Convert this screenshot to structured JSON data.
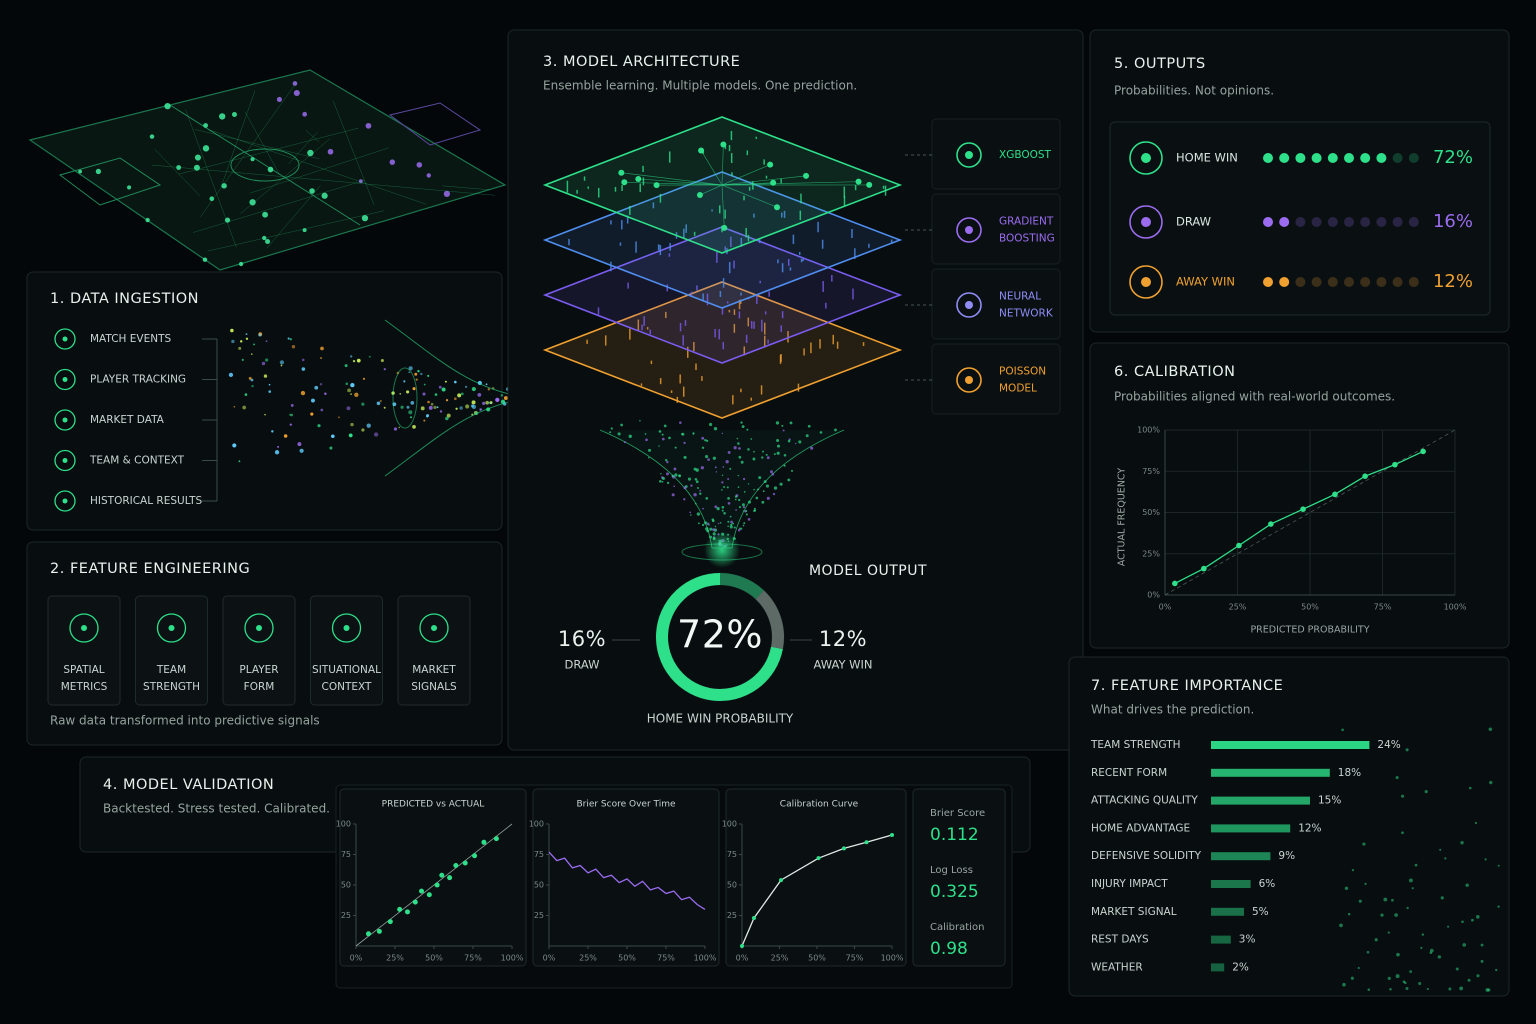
{
  "data_ingestion": {
    "title": "1. DATA INGESTION",
    "items": [
      "MATCH EVENTS",
      "PLAYER TRACKING",
      "MARKET DATA",
      "TEAM & CONTEXT",
      "HISTORICAL RESULTS"
    ]
  },
  "feature_engineering": {
    "title": "2. FEATURE ENGINEERING",
    "items": [
      {
        "lines": [
          "SPATIAL",
          "METRICS"
        ]
      },
      {
        "lines": [
          "TEAM",
          "STRENGTH"
        ]
      },
      {
        "lines": [
          "PLAYER",
          "FORM"
        ]
      },
      {
        "lines": [
          "SITUATIONAL",
          "CONTEXT"
        ]
      },
      {
        "lines": [
          "MARKET",
          "SIGNALS"
        ]
      }
    ],
    "caption": "Raw data transformed into predictive signals"
  },
  "model_architecture": {
    "title": "3. MODEL ARCHITECTURE",
    "subtitle": "Ensemble learning. Multiple models. One prediction.",
    "models": [
      {
        "lines": [
          "XGBOOST"
        ],
        "color": "#2ee08a"
      },
      {
        "lines": [
          "GRADIENT",
          "BOOSTING"
        ],
        "color": "#9b6cf0"
      },
      {
        "lines": [
          "NEURAL",
          "NETWORK"
        ],
        "color": "#8f8cf5"
      },
      {
        "lines": [
          "POISSON",
          "MODEL"
        ],
        "color": "#f0a030"
      }
    ]
  },
  "model_validation": {
    "title": "4. MODEL VALIDATION",
    "subtitle": "Backtested. Stress tested. Calibrated.",
    "metrics": [
      {
        "label": "Brier Score",
        "value": 0.112
      },
      {
        "label": "Log Loss",
        "value": 0.325
      },
      {
        "label": "Calibration",
        "value": 0.98
      }
    ]
  },
  "chart_data": [
    {
      "type": "dots",
      "title": "5. OUTPUTS",
      "subtitle": "Probabilities. Not opinions.",
      "categories": [
        "HOME WIN",
        "DRAW",
        "AWAY WIN"
      ],
      "values": [
        72,
        16,
        12
      ],
      "value_labels": [
        "72%",
        "16%",
        "12%"
      ],
      "colors": [
        "#2ee08a",
        "#9b6cf0",
        "#f0a030"
      ]
    },
    {
      "type": "donut",
      "title": "MODEL OUTPUT",
      "categories": [
        "HOME WIN PROBABILITY",
        "DRAW",
        "AWAY WIN"
      ],
      "values": [
        72,
        16,
        12
      ],
      "value_labels": [
        "72%",
        "16%",
        "12%"
      ],
      "colors": [
        "#2ee08a",
        "#5d6a66",
        "#1f7a52"
      ]
    },
    {
      "type": "line",
      "title": "6. CALIBRATION",
      "subtitle": "Probabilities aligned with real-world outcomes.",
      "x_label": "PREDICTED PROBABILITY",
      "y_label": "ACTUAL FREQUENCY",
      "x": [
        3.4,
        13.4,
        25.5,
        36.5,
        47.6,
        58.6,
        69,
        79.3,
        89
      ],
      "values": [
        7,
        16,
        30,
        43,
        52,
        61,
        72,
        79,
        87
      ],
      "color": "#2ee08a",
      "xlim": [
        0,
        100
      ],
      "ylim": [
        0,
        100
      ],
      "grid": true,
      "xticks": [
        {
          "value": 0,
          "label": "0%"
        },
        {
          "value": 25,
          "label": "25%"
        },
        {
          "value": 50,
          "label": "50%"
        },
        {
          "value": 75,
          "label": "75%"
        },
        {
          "value": 100,
          "label": "100%"
        }
      ],
      "yticks": [
        {
          "value": 0,
          "label": "0%"
        },
        {
          "value": 25,
          "label": "25%"
        },
        {
          "value": 50,
          "label": "50%"
        },
        {
          "value": 75,
          "label": "75%"
        },
        {
          "value": 100,
          "label": "100%"
        }
      ]
    },
    {
      "type": "hbar",
      "title": "7. FEATURE IMPORTANCE",
      "subtitle": "What drives the prediction.",
      "categories": [
        "TEAM STRENGTH",
        "RECENT FORM",
        "ATTACKING QUALITY",
        "HOME ADVANTAGE",
        "DEFENSIVE SOLIDITY",
        "INJURY IMPACT",
        "MARKET SIGNAL",
        "REST DAYS",
        "WEATHER"
      ],
      "values": [
        24,
        18,
        15,
        12,
        9,
        6,
        5,
        3,
        2
      ],
      "value_labels": [
        "24%",
        "18%",
        "15%",
        "12%",
        "9%",
        "6%",
        "5%",
        "3%",
        "2%"
      ],
      "color": "#2ee08a"
    },
    {
      "type": "scatter",
      "title": "PREDICTED vs ACTUAL",
      "x": [
        8,
        15,
        22,
        28,
        33,
        38,
        42,
        47,
        52,
        55,
        60,
        64,
        70,
        76,
        82,
        90
      ],
      "values": [
        10,
        12,
        20,
        30,
        28,
        36,
        45,
        42,
        50,
        58,
        56,
        66,
        68,
        74,
        85,
        88
      ],
      "color": "#2ee08a",
      "xlim": [
        0,
        100
      ],
      "ylim": [
        0,
        100
      ],
      "xticks": [
        {
          "value": 0,
          "label": "0%"
        },
        {
          "value": 25,
          "label": "25%"
        },
        {
          "value": 50,
          "label": "50%"
        },
        {
          "value": 75,
          "label": "75%"
        },
        {
          "value": 100,
          "label": "100%"
        }
      ],
      "yticks": [
        25,
        50,
        75,
        100
      ]
    },
    {
      "type": "line",
      "title": "Brier Score Over Time",
      "x": [
        0,
        5,
        10,
        15,
        20,
        25,
        30,
        35,
        40,
        45,
        50,
        55,
        60,
        65,
        70,
        75,
        80,
        85,
        90,
        95,
        100
      ],
      "values": [
        77,
        70,
        72,
        64,
        66,
        60,
        63,
        56,
        58,
        52,
        55,
        49,
        53,
        46,
        48,
        43,
        45,
        38,
        40,
        34,
        30
      ],
      "color": "#9b6cf0",
      "xlim": [
        0,
        100
      ],
      "ylim": [
        0,
        100
      ],
      "xticks": [
        {
          "value": 0,
          "label": "0%"
        },
        {
          "value": 25,
          "label": "25%"
        },
        {
          "value": 50,
          "label": "50%"
        },
        {
          "value": 75,
          "label": "75%"
        },
        {
          "value": 100,
          "label": "100%"
        }
      ],
      "yticks": [
        25,
        50,
        75,
        100
      ]
    },
    {
      "type": "line",
      "title": "Calibration Curve",
      "x": [
        0,
        8,
        26,
        51,
        68,
        83,
        100
      ],
      "values": [
        0,
        23,
        54,
        72,
        80,
        85,
        91
      ],
      "color": "#dfe9e4",
      "xlim": [
        0,
        100
      ],
      "ylim": [
        0,
        100
      ],
      "xticks": [
        {
          "value": 0,
          "label": "0%"
        },
        {
          "value": 25,
          "label": "25%"
        },
        {
          "value": 50,
          "label": "50%"
        },
        {
          "value": 75,
          "label": "75%"
        },
        {
          "value": 100,
          "label": "100%"
        }
      ],
      "yticks": [
        25,
        50,
        75,
        100
      ]
    }
  ]
}
